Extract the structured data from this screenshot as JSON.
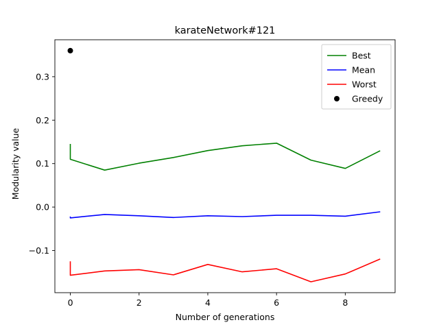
{
  "chart_data": {
    "type": "line",
    "title": "karateNetwork#121",
    "xlabel": "Number of generations",
    "ylabel": "Modularity value",
    "xlim": [
      -0.45,
      9.45
    ],
    "ylim": [
      -0.197,
      0.385
    ],
    "xticks": [
      0,
      2,
      4,
      6,
      8
    ],
    "xtick_labels": [
      "0",
      "2",
      "4",
      "6",
      "8"
    ],
    "yticks": [
      -0.1,
      0.0,
      0.1,
      0.2,
      0.3
    ],
    "ytick_labels": [
      "−0.1",
      "0.0",
      "0.1",
      "0.2",
      "0.3"
    ],
    "grid": false,
    "legend_position": "top-right",
    "series": [
      {
        "name": "Best",
        "kind": "line",
        "color": "#008000",
        "points": [
          [
            0,
            0.144
          ],
          [
            0,
            0.11
          ],
          [
            1,
            0.085
          ],
          [
            2,
            0.101
          ],
          [
            3,
            0.114
          ],
          [
            4,
            0.13
          ],
          [
            5,
            0.141
          ],
          [
            6,
            0.147
          ],
          [
            7,
            0.108
          ],
          [
            8,
            0.089
          ],
          [
            9,
            0.129
          ]
        ]
      },
      {
        "name": "Mean",
        "kind": "line",
        "color": "#0000ff",
        "points": [
          [
            0,
            -0.023
          ],
          [
            0,
            -0.025
          ],
          [
            1,
            -0.017
          ],
          [
            2,
            -0.02
          ],
          [
            3,
            -0.024
          ],
          [
            4,
            -0.02
          ],
          [
            5,
            -0.022
          ],
          [
            6,
            -0.019
          ],
          [
            7,
            -0.019
          ],
          [
            8,
            -0.021
          ],
          [
            9,
            -0.011
          ]
        ]
      },
      {
        "name": "Worst",
        "kind": "line",
        "color": "#ff0000",
        "points": [
          [
            0,
            -0.126
          ],
          [
            0,
            -0.157
          ],
          [
            1,
            -0.147
          ],
          [
            2,
            -0.144
          ],
          [
            3,
            -0.156
          ],
          [
            4,
            -0.132
          ],
          [
            5,
            -0.149
          ],
          [
            6,
            -0.142
          ],
          [
            7,
            -0.172
          ],
          [
            8,
            -0.154
          ],
          [
            9,
            -0.12
          ]
        ]
      },
      {
        "name": "Greedy",
        "kind": "marker",
        "color": "#000000",
        "points": [
          [
            0,
            0.36
          ]
        ]
      }
    ]
  }
}
